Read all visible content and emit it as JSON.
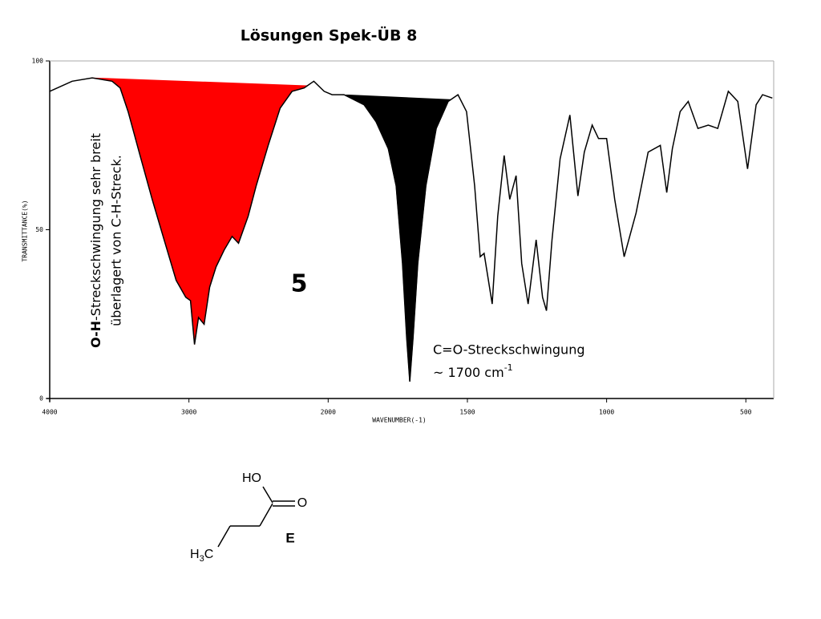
{
  "title": "Lösungen Spek-ÜB 8",
  "chart_data": {
    "type": "line",
    "ylabel": "TRANSMITTANCE(%)",
    "xlabel": "WAVENUMBER(-1)",
    "x": [
      4000,
      3839,
      3695,
      3552,
      3494,
      3437,
      3351,
      3264,
      3178,
      3092,
      3023,
      2989,
      2960,
      2931,
      2891,
      2851,
      2805,
      2747,
      2690,
      2644,
      2575,
      2517,
      2431,
      2345,
      2259,
      2172,
      2103,
      2029,
      1986,
      1943,
      1871,
      1828,
      1784,
      1756,
      1733,
      1718,
      1707,
      1695,
      1678,
      1649,
      1612,
      1569,
      1534,
      1503,
      1474,
      1454,
      1440,
      1411,
      1391,
      1368,
      1348,
      1325,
      1305,
      1282,
      1253,
      1230,
      1216,
      1196,
      1167,
      1132,
      1103,
      1080,
      1052,
      1029,
      1000,
      971,
      937,
      894,
      851,
      807,
      784,
      764,
      736,
      707,
      672,
      635,
      601,
      563,
      529,
      494,
      463,
      440,
      405
    ],
    "series": [
      {
        "color": "#000000",
        "values": [
          91,
          94,
          95,
          94,
          92,
          85,
          72,
          59,
          47,
          35,
          30,
          29,
          16,
          24,
          22,
          33,
          39,
          44,
          48,
          46,
          54,
          63,
          75,
          86,
          91,
          92,
          94,
          91,
          90,
          90,
          87,
          82,
          74,
          63,
          40,
          18,
          5,
          18,
          40,
          63,
          80,
          88,
          90,
          85,
          63,
          42,
          43,
          28,
          54,
          72,
          59,
          66,
          40,
          28,
          47,
          30,
          26,
          47,
          71,
          84,
          60,
          73,
          81,
          77,
          77,
          59,
          42,
          55,
          73,
          75,
          61,
          74,
          85,
          88,
          80,
          81,
          80,
          91,
          88,
          68,
          87,
          90,
          89
        ]
      }
    ],
    "xlim": [
      4000,
      400
    ],
    "x_scale_break": 2000,
    "xticks": [
      4000,
      3000,
      2000,
      1500,
      1000,
      500
    ],
    "ylim": [
      0,
      100
    ],
    "yticks": [
      0,
      50,
      100
    ],
    "highlights": [
      {
        "xrange": [
          3700,
          2150
        ],
        "color": "#ff0000"
      },
      {
        "xrange": [
          1950,
          1560
        ],
        "color": "#000000"
      }
    ]
  },
  "annotations": {
    "oh_bold": "O-H",
    "oh_rest": "-Streckschwingung sehr  breit",
    "oh_line2": "überlagert von C-H-Streck.",
    "number": "5",
    "co_line1": "C=O-Streckschwingung",
    "co_line2": "~ 1700 cm",
    "co_sup": "-1"
  },
  "molecule": {
    "ho": "HO",
    "o": "O",
    "h": "H",
    "sub": "3",
    "c": "C",
    "label": "E"
  }
}
